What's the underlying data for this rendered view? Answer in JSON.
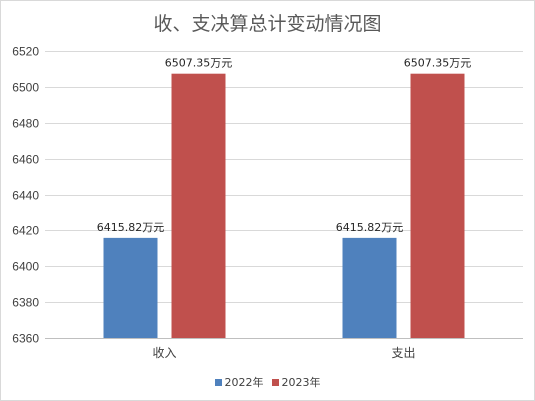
{
  "chart_data": {
    "type": "bar",
    "title": "收、支决算总计变动情况图",
    "categories": [
      "收入",
      "支出"
    ],
    "series": [
      {
        "name": "2022年",
        "values": [
          6415.82,
          6415.82
        ],
        "labels": [
          "6415.82万元",
          "6415.82万元"
        ],
        "color": "#4f81bd"
      },
      {
        "name": "2023年",
        "values": [
          6507.35,
          6507.35
        ],
        "labels": [
          "6507.35万元",
          "6507.35万元"
        ],
        "color": "#c0504d"
      }
    ],
    "ylim": [
      6360,
      6520
    ],
    "yticks": [
      "6360",
      "6380",
      "6400",
      "6420",
      "6440",
      "6460",
      "6480",
      "6500",
      "6520"
    ],
    "grid": true,
    "legend_position": "bottom"
  }
}
